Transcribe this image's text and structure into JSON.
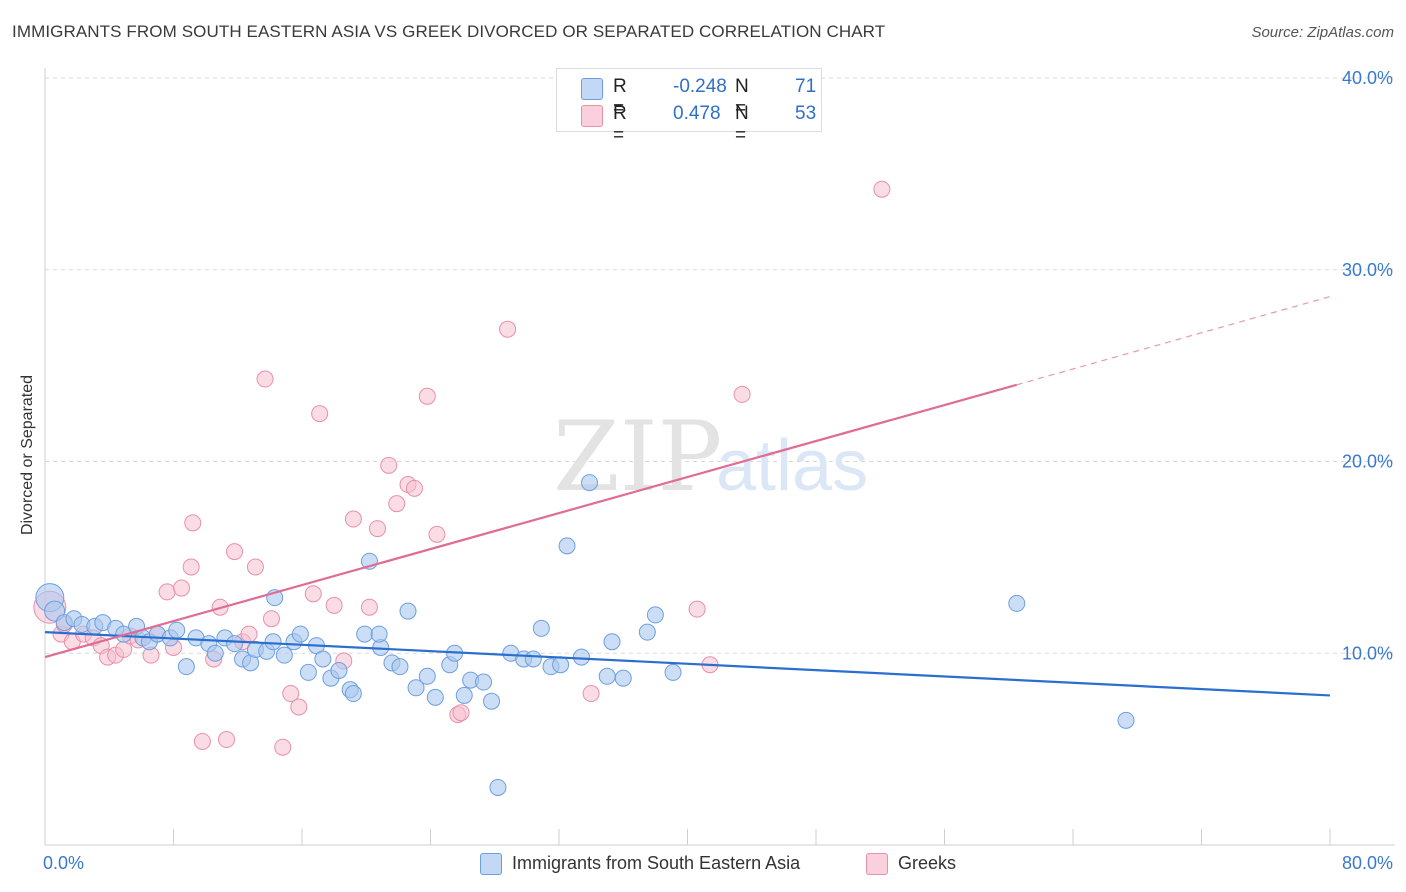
{
  "title": "IMMIGRANTS FROM SOUTH EASTERN ASIA VS GREEK DIVORCED OR SEPARATED CORRELATION CHART",
  "source": "Source: ZipAtlas.com",
  "watermark": {
    "zip": "ZIP",
    "atlas": "atlas"
  },
  "legend_top": {
    "rows": [
      {
        "r_label": "R =",
        "r_value": "-0.248",
        "n_label": "N =",
        "n_value": "71"
      },
      {
        "r_label": "R =",
        "r_value": "0.478",
        "n_label": "N =",
        "n_value": "53"
      }
    ]
  },
  "legend_bottom": {
    "series1": "Immigrants from South Eastern Asia",
    "series2": "Greeks"
  },
  "colors": {
    "blue_fill": "#aac8ef",
    "blue_stroke": "#6d9fe0",
    "blue_line": "#2a6fcf",
    "pink_fill": "#f6bfcf",
    "pink_stroke": "#e890aa",
    "pink_line": "#e06b93",
    "tick_label": "#3a78d0",
    "grid": "#d8d8d8"
  },
  "chart_data": {
    "type": "scatter",
    "title": "IMMIGRANTS FROM SOUTH EASTERN ASIA VS GREEK DIVORCED OR SEPARATED CORRELATION CHART",
    "xlabel": "",
    "ylabel": "Divorced or Separated",
    "xlim": [
      0,
      80
    ],
    "ylim": [
      0,
      40
    ],
    "x_tick_labels": [
      "0.0%",
      "80.0%"
    ],
    "y_ticks": [
      10,
      20,
      30,
      40
    ],
    "y_tick_labels": [
      "10.0%",
      "20.0%",
      "30.0%",
      "40.0%"
    ],
    "grid": true,
    "legend_position": "bottom",
    "series": [
      {
        "name": "Immigrants from South Eastern Asia",
        "trend": {
          "x0": 0,
          "y0": 11.1,
          "x1": 80,
          "y1": 7.8
        },
        "points": [
          [
            0.3,
            12.9,
            14
          ],
          [
            0.6,
            12.2,
            10
          ],
          [
            1.2,
            11.6,
            8
          ],
          [
            1.8,
            11.8,
            8
          ],
          [
            2.3,
            11.5,
            8
          ],
          [
            3.1,
            11.4,
            8
          ],
          [
            3.6,
            11.6,
            8
          ],
          [
            4.4,
            11.3,
            8
          ],
          [
            4.9,
            11.0,
            8
          ],
          [
            5.7,
            11.4,
            8
          ],
          [
            6.1,
            10.8,
            8
          ],
          [
            6.5,
            10.6,
            8
          ],
          [
            7.0,
            11.0,
            8
          ],
          [
            7.8,
            10.8,
            8
          ],
          [
            8.2,
            11.2,
            8
          ],
          [
            8.8,
            9.3,
            8
          ],
          [
            9.4,
            10.8,
            8
          ],
          [
            10.2,
            10.5,
            8
          ],
          [
            10.6,
            10.0,
            8
          ],
          [
            11.2,
            10.8,
            8
          ],
          [
            11.8,
            10.5,
            8
          ],
          [
            12.3,
            9.7,
            8
          ],
          [
            12.8,
            9.5,
            8
          ],
          [
            13.1,
            10.2,
            8
          ],
          [
            13.8,
            10.1,
            8
          ],
          [
            14.2,
            10.6,
            8
          ],
          [
            14.3,
            12.9,
            8
          ],
          [
            14.9,
            9.9,
            8
          ],
          [
            15.5,
            10.6,
            8
          ],
          [
            15.9,
            11.0,
            8
          ],
          [
            16.4,
            9.0,
            8
          ],
          [
            16.9,
            10.4,
            8
          ],
          [
            17.3,
            9.7,
            8
          ],
          [
            17.8,
            8.7,
            8
          ],
          [
            18.3,
            9.1,
            8
          ],
          [
            19.0,
            8.1,
            8
          ],
          [
            19.2,
            7.9,
            8
          ],
          [
            19.9,
            11.0,
            8
          ],
          [
            20.2,
            14.8,
            8
          ],
          [
            20.9,
            10.3,
            8
          ],
          [
            20.8,
            11.0,
            8
          ],
          [
            21.6,
            9.5,
            8
          ],
          [
            22.1,
            9.3,
            8
          ],
          [
            22.6,
            12.2,
            8
          ],
          [
            23.1,
            8.2,
            8
          ],
          [
            23.8,
            8.8,
            8
          ],
          [
            24.3,
            7.7,
            8
          ],
          [
            25.2,
            9.4,
            8
          ],
          [
            25.5,
            10.0,
            8
          ],
          [
            26.1,
            7.8,
            8
          ],
          [
            26.5,
            8.6,
            8
          ],
          [
            27.3,
            8.5,
            8
          ],
          [
            27.8,
            7.5,
            8
          ],
          [
            28.2,
            3.0,
            8
          ],
          [
            29.0,
            10.0,
            8
          ],
          [
            29.8,
            9.7,
            8
          ],
          [
            30.4,
            9.7,
            8
          ],
          [
            30.9,
            11.3,
            8
          ],
          [
            31.5,
            9.3,
            8
          ],
          [
            32.1,
            9.4,
            8
          ],
          [
            32.5,
            15.6,
            8
          ],
          [
            33.4,
            9.8,
            8
          ],
          [
            33.9,
            18.9,
            8
          ],
          [
            35.0,
            8.8,
            8
          ],
          [
            35.3,
            10.6,
            8
          ],
          [
            36.0,
            8.7,
            8
          ],
          [
            37.5,
            11.1,
            8
          ],
          [
            38.0,
            12.0,
            8
          ],
          [
            39.1,
            9.0,
            8
          ],
          [
            60.5,
            12.6,
            8
          ],
          [
            67.3,
            6.5,
            8
          ]
        ]
      },
      {
        "name": "Greeks",
        "trend": {
          "x0": 0,
          "y0": 9.8,
          "x1": 60.5,
          "y1": 24.0,
          "dash_to_x": 80,
          "dash_to_y": 28.6
        },
        "points": [
          [
            0.3,
            12.4,
            16
          ],
          [
            1.0,
            11.0,
            8
          ],
          [
            1.7,
            10.6,
            8
          ],
          [
            2.4,
            11.0,
            8
          ],
          [
            3.0,
            10.8,
            8
          ],
          [
            3.5,
            10.4,
            8
          ],
          [
            3.9,
            9.8,
            8
          ],
          [
            4.4,
            9.9,
            8
          ],
          [
            4.9,
            10.2,
            8
          ],
          [
            5.3,
            10.9,
            8
          ],
          [
            5.8,
            10.7,
            8
          ],
          [
            6.6,
            9.9,
            8
          ],
          [
            7.0,
            11.0,
            8
          ],
          [
            7.6,
            13.2,
            8
          ],
          [
            8.0,
            10.3,
            8
          ],
          [
            8.5,
            13.4,
            8
          ],
          [
            9.1,
            14.5,
            8
          ],
          [
            9.2,
            16.8,
            8
          ],
          [
            9.8,
            5.4,
            8
          ],
          [
            10.5,
            9.7,
            8
          ],
          [
            10.9,
            12.4,
            8
          ],
          [
            11.3,
            5.5,
            8
          ],
          [
            11.8,
            15.3,
            8
          ],
          [
            12.3,
            10.6,
            8
          ],
          [
            12.7,
            11.0,
            8
          ],
          [
            13.1,
            14.5,
            8
          ],
          [
            13.7,
            24.3,
            8
          ],
          [
            14.1,
            11.8,
            8
          ],
          [
            14.8,
            5.1,
            8
          ],
          [
            15.3,
            7.9,
            8
          ],
          [
            15.8,
            7.2,
            8
          ],
          [
            16.7,
            13.1,
            8
          ],
          [
            17.1,
            22.5,
            8
          ],
          [
            18.0,
            12.5,
            8
          ],
          [
            18.6,
            9.6,
            8
          ],
          [
            19.2,
            17.0,
            8
          ],
          [
            20.2,
            12.4,
            8
          ],
          [
            20.7,
            16.5,
            8
          ],
          [
            21.4,
            19.8,
            8
          ],
          [
            21.9,
            17.8,
            8
          ],
          [
            22.6,
            18.8,
            8
          ],
          [
            23.0,
            18.6,
            8
          ],
          [
            23.8,
            23.4,
            8
          ],
          [
            24.4,
            16.2,
            8
          ],
          [
            25.7,
            6.8,
            8
          ],
          [
            25.9,
            6.9,
            8
          ],
          [
            28.8,
            26.9,
            8
          ],
          [
            34.0,
            7.9,
            8
          ],
          [
            40.6,
            12.3,
            8
          ],
          [
            41.4,
            9.4,
            8
          ],
          [
            43.4,
            23.5,
            8
          ],
          [
            52.1,
            34.2,
            8
          ],
          [
            1.2,
            11.5,
            8
          ]
        ]
      }
    ]
  }
}
